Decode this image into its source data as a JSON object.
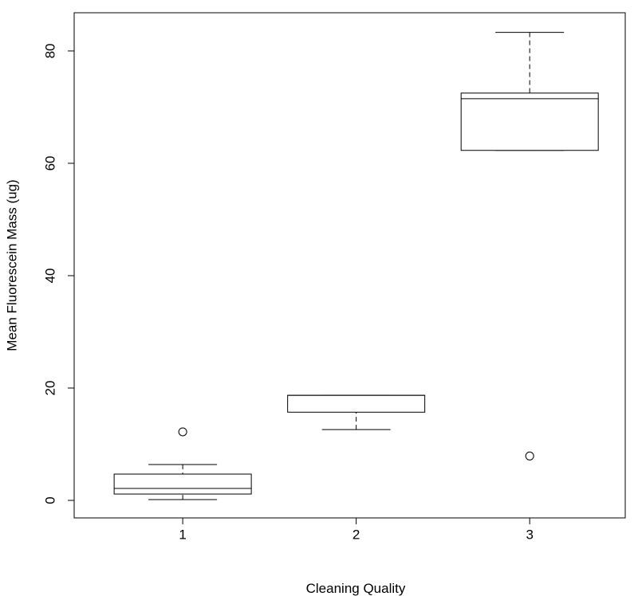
{
  "chart_data": {
    "type": "boxplot",
    "x_label": "Cleaning Quality",
    "y_label": "Mean Fluorescein Mass (ug)",
    "categories": [
      "1",
      "2",
      "3"
    ],
    "boxes": [
      {
        "min": 0.14,
        "q1": 1.13,
        "median": 2.13,
        "q3": 4.68,
        "max": 6.38,
        "outliers": [
          12.2
        ]
      },
      {
        "min": 12.6,
        "q1": 15.7,
        "median": 18.7,
        "q3": 18.7,
        "max": 18.7,
        "outliers": []
      },
      {
        "min": 62.3,
        "q1": 62.3,
        "median": 71.5,
        "q3": 72.5,
        "max": 83.3,
        "outliers": [
          7.9
        ]
      }
    ],
    "color": "#000000",
    "ylim": [
      -3.12,
      86.8
    ],
    "yticks": [
      0,
      20,
      40,
      60,
      80
    ]
  }
}
